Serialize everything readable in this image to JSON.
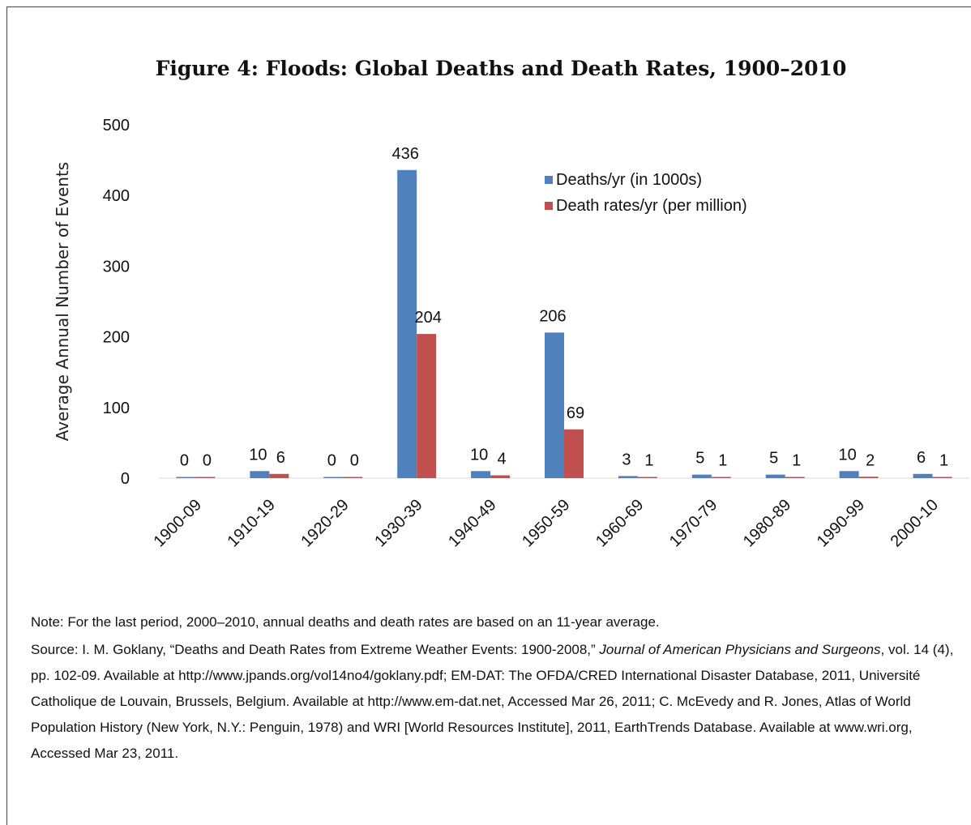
{
  "chart_data": {
    "type": "bar",
    "title": "Figure 4: Floods: Global Deaths and Death Rates, 1900–2010",
    "ylabel": "Average Annual Number of Events",
    "xlabel": "",
    "ylim": [
      0,
      500
    ],
    "yticks": [
      "0",
      "100",
      "200",
      "300",
      "400",
      "500"
    ],
    "categories": [
      "1900-09",
      "1910-19",
      "1920-29",
      "1930-39",
      "1940-49",
      "1950-59",
      "1960-69",
      "1970-79",
      "1980-89",
      "1990-99",
      "2000-10"
    ],
    "series": [
      {
        "name": "Deaths/yr (in 1000s)",
        "values": [
          0,
          10,
          0,
          436,
          10,
          206,
          3,
          5,
          5,
          10,
          6
        ],
        "color": "#4f81bd"
      },
      {
        "name": "Death rates/yr (per million)",
        "values": [
          0,
          6,
          0,
          204,
          4,
          69,
          1,
          1,
          1,
          2,
          1
        ],
        "color": "#c0504d"
      }
    ],
    "grid": false,
    "legend_position": "top-right"
  },
  "notes": {
    "note": "Note: For the last period, 2000–2010, annual deaths and death rates are based on an 11-year average.",
    "source_a": "Source: I. M. Goklany, “Deaths and Death Rates from Extreme Weather Events: 1900-2008,” ",
    "source_journal": "Journal of American Physicians and Surgeons",
    "source_b": ", vol. 14 (4), pp. 102-09. Available at http://www.jpands.org/vol14no4/goklany.pdf; EM-DAT: The OFDA/CRED International Disaster Database, 2011, Université Catholique de Louvain, Brussels, Belgium. Available at http://www.em-dat.net, Accessed Mar 26, 2011;  C. McEvedy and R. Jones, Atlas of World Population History (New York, N.Y.: Penguin, 1978) and WRI [World Resources Institute], 2011, EarthTrends Database. Available at www.wri.org, Accessed Mar 23, 2011."
  }
}
